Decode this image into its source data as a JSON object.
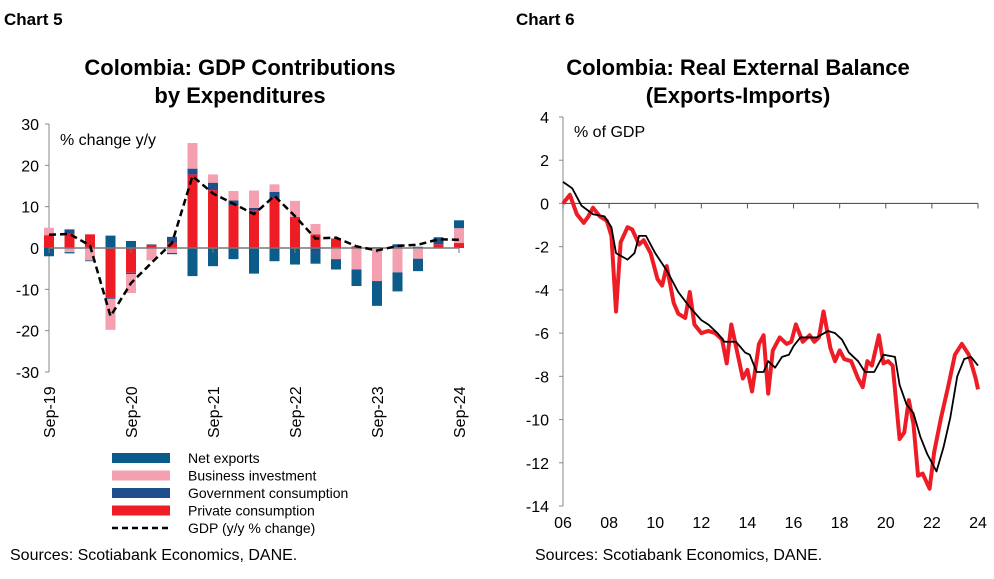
{
  "chart_data": [
    {
      "label": "Chart 5",
      "type": "bar",
      "title": "Colombia: GDP Contributions by Expenditures",
      "title_lines": [
        "Colombia: GDP Contributions",
        "by Expenditures"
      ],
      "ylabel": "% change y/y",
      "ylim": [
        -30,
        30
      ],
      "yticks": [
        30,
        20,
        10,
        0,
        -10,
        -20,
        -30
      ],
      "stacked": true,
      "categories": [
        "Sep-19",
        "Dec-19",
        "Mar-20",
        "Jun-20",
        "Sep-20",
        "Dec-20",
        "Mar-21",
        "Jun-21",
        "Sep-21",
        "Dec-21",
        "Mar-22",
        "Jun-22",
        "Sep-22",
        "Dec-22",
        "Mar-23",
        "Jun-23",
        "Sep-23",
        "Dec-23",
        "Mar-24",
        "Jun-24",
        "Sep-24"
      ],
      "xtick_labels": [
        "Sep-19",
        "Sep-20",
        "Sep-21",
        "Sep-22",
        "Sep-23",
        "Sep-24"
      ],
      "series": [
        {
          "name": "Net exports",
          "color": "#0b5c8a",
          "kind": "bar",
          "values": [
            -2.0,
            -0.3,
            -0.2,
            3.0,
            1.7,
            0.1,
            -0.3,
            -6.8,
            -4.4,
            -2.7,
            -6.2,
            -3.2,
            -4.0,
            -2.6,
            -2.5,
            -4.0,
            -6.0,
            -4.6,
            -3.0,
            0.3,
            1.9
          ]
        },
        {
          "name": "Business investment",
          "color": "#f4a0b0",
          "kind": "bar",
          "values": [
            1.8,
            -1.0,
            -3.0,
            -7.5,
            -4.6,
            -3.0,
            -1.2,
            6.2,
            2.0,
            2.3,
            4.2,
            1.8,
            3.9,
            2.5,
            -2.7,
            -5.2,
            -8.0,
            -5.9,
            -2.6,
            0.0,
            3.6
          ]
        },
        {
          "name": "Government consumption",
          "color": "#1f4e8c",
          "kind": "bar",
          "values": [
            0.0,
            1.0,
            0.0,
            -0.3,
            -0.3,
            0.0,
            1.4,
            1.4,
            1.8,
            1.2,
            0.6,
            1.5,
            0.0,
            -1.2,
            0.0,
            0.0,
            0.2,
            0.7,
            0.3,
            1.4,
            0.0
          ]
        },
        {
          "name": "Private consumption",
          "color": "#ee1c25",
          "kind": "bar",
          "values": [
            3.1,
            3.5,
            3.3,
            -12.0,
            -6.0,
            0.8,
            1.3,
            17.8,
            14.0,
            10.3,
            9.1,
            12.1,
            7.5,
            3.3,
            2.3,
            0.4,
            0.0,
            0.2,
            0.0,
            0.9,
            1.2
          ]
        },
        {
          "name": "GDP (y/y % change)",
          "color": "#000000",
          "kind": "line",
          "dashed": true,
          "values": [
            3.2,
            3.4,
            0.6,
            -16.5,
            -8.5,
            -3.6,
            1.2,
            17.4,
            13.2,
            10.7,
            8.2,
            12.6,
            7.7,
            2.3,
            2.5,
            0.4,
            -0.6,
            0.5,
            0.8,
            2.1,
            2.0
          ]
        }
      ],
      "legend": "bottom",
      "source": "Sources: Scotiabank Economics, DANE."
    },
    {
      "label": "Chart 6",
      "type": "line",
      "title": "Colombia: Real External Balance (Exports-Imports)",
      "title_lines": [
        "Colombia: Real External Balance",
        "(Exports-Imports)"
      ],
      "ylabel": "% of GDP",
      "ylim": [
        -14,
        4
      ],
      "yticks": [
        4,
        2,
        0,
        -2,
        -4,
        -6,
        -8,
        -10,
        -12,
        -14
      ],
      "xlim": [
        2006,
        2024
      ],
      "xtick_labels": [
        "06",
        "08",
        "10",
        "12",
        "14",
        "16",
        "18",
        "20",
        "22",
        "24"
      ],
      "series": [
        {
          "color": "#ee1c25",
          "x": [
            2006.0,
            2006.3,
            2006.6,
            2006.9,
            2007.1,
            2007.3,
            2007.6,
            2007.9,
            2008.1,
            2008.3,
            2008.5,
            2008.8,
            2009.0,
            2009.3,
            2009.5,
            2009.8,
            2010.1,
            2010.3,
            2010.5,
            2010.8,
            2011.0,
            2011.3,
            2011.5,
            2011.7,
            2012.0,
            2012.3,
            2012.6,
            2012.9,
            2013.1,
            2013.3,
            2013.6,
            2013.8,
            2014.0,
            2014.2,
            2014.5,
            2014.7,
            2014.9,
            2015.1,
            2015.4,
            2015.7,
            2015.9,
            2016.1,
            2016.4,
            2016.7,
            2016.9,
            2017.1,
            2017.3,
            2017.6,
            2017.8,
            2018.0,
            2018.2,
            2018.5,
            2018.8,
            2019.0,
            2019.2,
            2019.4,
            2019.7,
            2019.9,
            2020.1,
            2020.3,
            2020.6,
            2020.8,
            2021.0,
            2021.2,
            2021.4,
            2021.6,
            2021.9,
            2022.1,
            2022.4,
            2022.7,
            2023.0,
            2023.3,
            2023.6,
            2023.9,
            2024.0
          ],
          "y": [
            0,
            0.4,
            -0.5,
            -0.9,
            -0.6,
            -0.2,
            -0.6,
            -0.8,
            -1.5,
            -5.0,
            -1.8,
            -1.1,
            -1.2,
            -1.9,
            -1.7,
            -2.3,
            -3.5,
            -3.8,
            -2.9,
            -4.6,
            -5.1,
            -5.3,
            -4.1,
            -5.6,
            -6.0,
            -5.9,
            -6.0,
            -6.3,
            -7.4,
            -5.6,
            -7.1,
            -8.1,
            -7.7,
            -8.7,
            -6.5,
            -6.1,
            -8.8,
            -6.8,
            -6.2,
            -6.5,
            -6.4,
            -5.6,
            -6.4,
            -6.1,
            -6.4,
            -6.2,
            -5.0,
            -6.7,
            -7.3,
            -6.8,
            -7.2,
            -7.3,
            -8.1,
            -8.5,
            -7.3,
            -7.5,
            -6.1,
            -7.4,
            -7.3,
            -7.5,
            -10.9,
            -10.6,
            -9.1,
            -10.2,
            -12.6,
            -12.5,
            -13.2,
            -11.5,
            -9.9,
            -8.5,
            -7.0,
            -6.5,
            -7.0,
            -8.1,
            -8.6
          ]
        },
        {
          "color": "#000000",
          "x": [
            2006.0,
            2006.4,
            2006.8,
            2007.3,
            2007.8,
            2008.1,
            2008.3,
            2008.8,
            2009.1,
            2009.3,
            2009.6,
            2010.0,
            2010.5,
            2011.0,
            2011.5,
            2012.0,
            2012.3,
            2012.7,
            2013.0,
            2013.5,
            2013.9,
            2014.1,
            2014.4,
            2014.7,
            2014.9,
            2015.2,
            2015.5,
            2015.8,
            2016.0,
            2016.3,
            2016.7,
            2017.0,
            2017.5,
            2017.8,
            2018.1,
            2018.4,
            2018.8,
            2019.1,
            2019.5,
            2019.9,
            2020.4,
            2020.6,
            2020.9,
            2021.2,
            2021.5,
            2021.8,
            2022.2,
            2022.5,
            2022.8,
            2023.1,
            2023.4,
            2023.7,
            2024.0
          ],
          "y": [
            1.0,
            0.7,
            -0.1,
            -0.5,
            -0.6,
            -1.1,
            -2.3,
            -2.6,
            -2.3,
            -1.5,
            -1.5,
            -2.3,
            -3.1,
            -4.1,
            -4.8,
            -5.4,
            -5.6,
            -6.0,
            -6.4,
            -6.4,
            -6.9,
            -7.0,
            -7.8,
            -7.8,
            -7.3,
            -7.6,
            -7.1,
            -7.0,
            -6.6,
            -6.2,
            -6.2,
            -6.2,
            -5.9,
            -6.0,
            -6.3,
            -6.9,
            -7.3,
            -7.8,
            -7.8,
            -7.0,
            -7.1,
            -8.4,
            -9.3,
            -9.7,
            -10.8,
            -11.6,
            -12.4,
            -11.3,
            -9.9,
            -8.0,
            -7.2,
            -7.1,
            -7.5
          ]
        }
      ],
      "source": "Sources: Scotiabank Economics, DANE."
    }
  ]
}
